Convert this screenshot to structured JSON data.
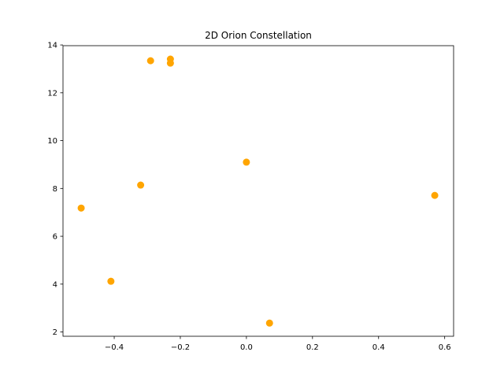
{
  "chart_data": {
    "type": "scatter",
    "title": "2D Orion Constellation",
    "xlabel": "",
    "ylabel": "",
    "xlim": [
      -0.555,
      0.627
    ],
    "ylim": [
      1.82,
      13.97
    ],
    "xticks": [
      -0.4,
      -0.2,
      0.0,
      0.2,
      0.4,
      0.6
    ],
    "xtick_labels": [
      "−0.4",
      "−0.2",
      "0.0",
      "0.2",
      "0.4",
      "0.6"
    ],
    "yticks": [
      2,
      4,
      6,
      8,
      10,
      12,
      14
    ],
    "ytick_labels": [
      "2",
      "4",
      "6",
      "8",
      "10",
      "12",
      "14"
    ],
    "grid": false,
    "legend": "none",
    "marker_color": "#ffa500",
    "series": [
      {
        "x": [
          -0.29,
          -0.23,
          -0.23,
          0.0,
          -0.32,
          -0.5,
          -0.41,
          0.07,
          0.57
        ],
        "y": [
          13.34,
          13.41,
          13.24,
          9.1,
          8.14,
          7.18,
          4.12,
          2.37,
          7.71
        ]
      }
    ]
  }
}
